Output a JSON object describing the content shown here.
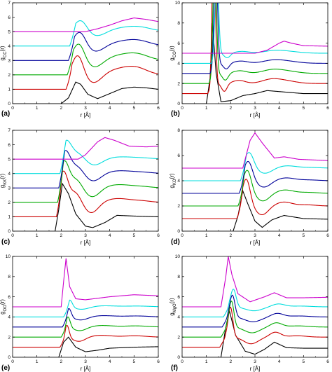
{
  "figure": {
    "colors": [
      "#000000",
      "#cc0000",
      "#00aa00",
      "#000099",
      "#00dddd",
      "#cc00cc"
    ]
  },
  "chart_data": [
    {
      "type": "line",
      "panel": "(a)",
      "xlabel": "r [Å]",
      "ylabel": "g_CC(r)",
      "xlim": [
        0,
        6
      ],
      "ylim": [
        0,
        7
      ],
      "xticks": [
        0,
        1,
        2,
        3,
        4,
        5,
        6
      ],
      "yticks": [
        0,
        1,
        2,
        3,
        4,
        5,
        6,
        7
      ],
      "grid": false,
      "shape": {
        "onset": 2.15,
        "pk": [
          [
            2.65,
            1.6,
            0.3
          ],
          [
            3.3,
            -0.7,
            0.45
          ],
          [
            4.4,
            0.45,
            0.8
          ],
          [
            5.1,
            0.4,
            0.6
          ]
        ]
      },
      "series": [
        {
          "offset": 0,
          "x": [
            0,
            2.0,
            2.3,
            2.6,
            2.8,
            3.1,
            3.5,
            4.0,
            4.5,
            5.0,
            5.5,
            6.0
          ],
          "values": [
            0,
            0,
            0.4,
            1.5,
            1.35,
            0.65,
            0.35,
            0.7,
            1.05,
            1.15,
            1.1,
            1.0
          ]
        },
        {
          "offset": 1
        },
        {
          "offset": 2
        },
        {
          "offset": 3
        },
        {
          "offset": 4
        },
        {
          "offset": 5,
          "x": [
            0,
            3.0,
            3.5,
            4.0,
            4.5,
            5.0,
            5.5,
            6.0
          ],
          "values": [
            0,
            0,
            0.2,
            0.45,
            0.75,
            0.95,
            0.85,
            0.7
          ]
        }
      ]
    },
    {
      "type": "line",
      "panel": "(b)",
      "xlabel": "r [Å]",
      "ylabel": "g_CO(r)",
      "xlim": [
        0,
        6
      ],
      "ylim": [
        0,
        10
      ],
      "xticks": [
        0,
        1,
        2,
        3,
        4,
        5,
        6
      ],
      "yticks": [
        0,
        2,
        4,
        6,
        8,
        10
      ],
      "grid": false,
      "shape": {
        "onset": 1.0,
        "pk": [
          [
            1.25,
            20.0,
            0.09
          ],
          [
            1.7,
            -0.9,
            0.15
          ],
          [
            2.3,
            0.35,
            0.35
          ],
          [
            3.6,
            0.4,
            0.5
          ],
          [
            4.2,
            0.3,
            0.6
          ]
        ]
      },
      "series": [
        {
          "offset": 0,
          "x": [
            0,
            1.0,
            1.15,
            1.25,
            1.4,
            1.6,
            2.0,
            2.5,
            3.0,
            3.5,
            4.0,
            5.0,
            6.0
          ],
          "values": [
            0,
            0,
            2.5,
            8.0,
            3.0,
            0.2,
            0.3,
            0.8,
            1.0,
            1.3,
            1.2,
            1.0,
            1.0
          ]
        },
        {
          "offset": 1
        },
        {
          "offset": 2
        },
        {
          "offset": 3
        },
        {
          "offset": 4
        },
        {
          "offset": 5,
          "x": [
            0,
            3.0,
            3.5,
            4.0,
            4.2,
            4.5,
            5.0,
            6.0
          ],
          "values": [
            0,
            0,
            0.3,
            1.0,
            1.2,
            1.0,
            0.75,
            0.7
          ]
        }
      ]
    },
    {
      "type": "line",
      "panel": "(c)",
      "xlabel": "r [Å]",
      "ylabel": "g_KK(r)",
      "xlim": [
        0,
        6
      ],
      "ylim": [
        0,
        7
      ],
      "xticks": [
        0,
        1,
        2,
        3,
        4,
        5,
        6
      ],
      "yticks": [
        0,
        1,
        2,
        3,
        4,
        5,
        6,
        7
      ],
      "grid": false,
      "shape": {
        "onset": 1.75,
        "pk": [
          [
            2.05,
            2.4,
            0.25
          ],
          [
            2.55,
            0.8,
            0.3
          ],
          [
            3.2,
            -0.85,
            0.4
          ],
          [
            4.3,
            0.3,
            0.7
          ],
          [
            5.3,
            0.1,
            0.5
          ]
        ]
      },
      "series": [
        {
          "offset": 0,
          "x": [
            0,
            1.75,
            1.9,
            2.05,
            2.3,
            2.6,
            3.0,
            3.3,
            3.8,
            4.3,
            5.0,
            6.0
          ],
          "values": [
            0,
            0,
            1.5,
            3.3,
            2.6,
            1.2,
            0.35,
            0.25,
            0.6,
            1.1,
            1.05,
            1.0
          ]
        },
        {
          "offset": 1
        },
        {
          "offset": 2
        },
        {
          "offset": 3
        },
        {
          "offset": 4
        },
        {
          "offset": 5,
          "x": [
            0,
            2.7,
            3.0,
            3.5,
            3.8,
            4.2,
            4.8,
            5.5,
            6.0
          ],
          "values": [
            0,
            0,
            0.3,
            1.2,
            1.5,
            1.3,
            0.9,
            0.85,
            0.9
          ]
        }
      ]
    },
    {
      "type": "line",
      "panel": "(d)",
      "xlabel": "r [Å]",
      "ylabel": "g_KO(r)",
      "xlim": [
        0,
        6
      ],
      "ylim": [
        0,
        8
      ],
      "xticks": [
        0,
        1,
        2,
        3,
        4,
        5,
        6
      ],
      "yticks": [
        0,
        2,
        4,
        6,
        8
      ],
      "grid": false,
      "shape": {
        "onset": 2.2,
        "pk": [
          [
            2.6,
            2.45,
            0.22
          ],
          [
            3.25,
            -0.8,
            0.35
          ],
          [
            4.15,
            0.35,
            0.45
          ],
          [
            5.1,
            0.1,
            0.5
          ]
        ]
      },
      "series": [
        {
          "offset": 0,
          "x": [
            0,
            2.1,
            2.3,
            2.5,
            2.7,
            3.0,
            3.3,
            3.7,
            4.2,
            5.0,
            6.0
          ],
          "values": [
            0,
            0,
            1.2,
            3.2,
            2.2,
            0.8,
            0.3,
            0.9,
            1.25,
            1.0,
            0.95
          ]
        },
        {
          "offset": 1
        },
        {
          "offset": 2
        },
        {
          "offset": 3
        },
        {
          "offset": 4
        },
        {
          "offset": 5,
          "x": [
            0,
            2.5,
            2.8,
            3.0,
            3.3,
            3.8,
            4.2,
            4.8,
            6.0
          ],
          "values": [
            0,
            0,
            2.2,
            2.8,
            2.0,
            0.8,
            0.9,
            0.7,
            0.6
          ]
        }
      ]
    },
    {
      "type": "line",
      "panel": "(e)",
      "xlabel": "r [Å]",
      "ylabel": "g_OO(r)",
      "xlim": [
        0,
        6
      ],
      "ylim": [
        0,
        10
      ],
      "xticks": [
        0,
        1,
        2,
        3,
        4,
        5,
        6
      ],
      "yticks": [
        0,
        2,
        4,
        6,
        8,
        10
      ],
      "grid": false,
      "shape": {
        "onset": 1.9,
        "pk": [
          [
            2.2,
            1.4,
            0.12
          ],
          [
            2.7,
            -0.5,
            0.35
          ],
          [
            3.6,
            0.2,
            0.6
          ],
          [
            5.0,
            0.15,
            0.6
          ]
        ]
      },
      "series": [
        {
          "offset": 0,
          "x": [
            0,
            1.9,
            2.1,
            2.3,
            2.6,
            3.0,
            3.5,
            4.0,
            5.0,
            6.0
          ],
          "values": [
            0,
            0,
            1.5,
            2.0,
            1.0,
            0.55,
            0.7,
            0.9,
            1.0,
            1.05
          ]
        },
        {
          "offset": 1
        },
        {
          "offset": 2
        },
        {
          "offset": 3
        },
        {
          "offset": 4
        },
        {
          "offset": 5,
          "x": [
            0,
            2.0,
            2.1,
            2.2,
            2.35,
            2.6,
            3.0,
            4.0,
            5.0,
            6.0
          ],
          "values": [
            0,
            0,
            2.5,
            4.8,
            2.0,
            0.8,
            0.7,
            1.0,
            1.2,
            1.1
          ]
        }
      ]
    },
    {
      "type": "line",
      "panel": "(f)",
      "xlabel": "r [Å]",
      "ylabel": "g_MgO(r)",
      "xlim": [
        0,
        6
      ],
      "ylim": [
        0,
        10
      ],
      "xticks": [
        0,
        1,
        2,
        3,
        4,
        5,
        6
      ],
      "yticks": [
        0,
        2,
        4,
        6,
        8,
        10
      ],
      "grid": false,
      "shape": {
        "onset": 1.5,
        "pk": [
          [
            1.95,
            3.4,
            0.13
          ],
          [
            2.8,
            -0.75,
            0.4
          ],
          [
            3.8,
            0.55,
            0.3
          ],
          [
            4.7,
            0.15,
            0.5
          ]
        ]
      },
      "series": [
        {
          "offset": 0,
          "x": [
            0,
            1.6,
            1.8,
            1.95,
            2.2,
            2.6,
            3.0,
            3.4,
            3.8,
            4.3,
            5.0,
            6.0
          ],
          "values": [
            0,
            0,
            3.0,
            4.6,
            2.2,
            0.6,
            0.3,
            0.8,
            1.5,
            0.95,
            0.9,
            0.9
          ]
        },
        {
          "offset": 1
        },
        {
          "offset": 2
        },
        {
          "offset": 3
        },
        {
          "offset": 4
        },
        {
          "offset": 5,
          "x": [
            0,
            1.6,
            1.8,
            1.9,
            2.05,
            2.3,
            2.8,
            3.4,
            3.8,
            4.3,
            5.0,
            6.0
          ],
          "values": [
            0,
            0,
            3.0,
            5.0,
            3.2,
            1.3,
            0.5,
            1.0,
            1.4,
            0.9,
            0.9,
            0.95
          ]
        }
      ]
    }
  ]
}
